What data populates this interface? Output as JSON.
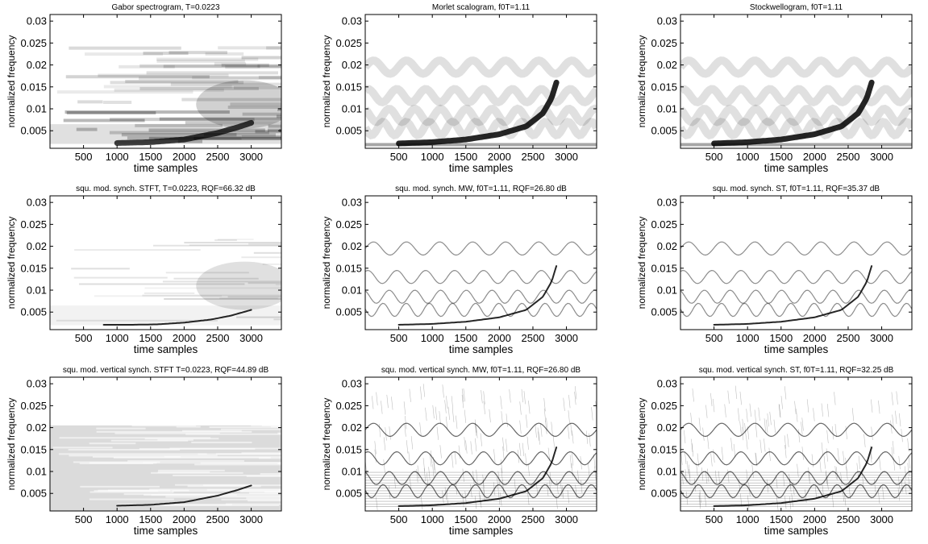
{
  "figure": {
    "colormap": "gray-inverted",
    "background": "#ffffff",
    "axis_color": "#000000"
  },
  "chart_data": [
    {
      "type": "heatmap",
      "title": "Gabor spectrogram, T=0.0223",
      "xlabel": "time samples",
      "ylabel": "normalized frequency",
      "xlim": [
        0,
        3450
      ],
      "ylim": [
        0.001,
        0.0315
      ],
      "xticks": [
        500,
        1000,
        1500,
        2000,
        2500,
        3000
      ],
      "xticklabels": [
        "500",
        "1000",
        "1500",
        "2000",
        "2500",
        "3000"
      ],
      "yticks": [
        0.005,
        0.01,
        0.015,
        0.02,
        0.025,
        0.03
      ],
      "yticklabels": [
        "0.005",
        "0.01",
        "0.015",
        "0.02",
        "0.025",
        "0.03"
      ],
      "style": "gabor",
      "ridge": {
        "t": [
          1000,
          1500,
          2000,
          2500,
          2800,
          3000
        ],
        "f": [
          0.0022,
          0.0024,
          0.003,
          0.0045,
          0.0058,
          0.0068
        ]
      }
    },
    {
      "type": "heatmap",
      "title": "Morlet scalogram, f0T=1.11",
      "xlabel": "time samples",
      "ylabel": "normalized frequency",
      "xlim": [
        0,
        3450
      ],
      "ylim": [
        0.001,
        0.0315
      ],
      "xticks": [
        500,
        1000,
        1500,
        2000,
        2500,
        3000
      ],
      "xticklabels": [
        "500",
        "1000",
        "1500",
        "2000",
        "2500",
        "3000"
      ],
      "yticks": [
        0.005,
        0.01,
        0.015,
        0.02,
        0.025,
        0.03
      ],
      "yticklabels": [
        "0.005",
        "0.01",
        "0.015",
        "0.02",
        "0.025",
        "0.03"
      ],
      "style": "wavelet",
      "ridge": {
        "t": [
          500,
          1000,
          1500,
          2000,
          2400,
          2650,
          2780,
          2850
        ],
        "f": [
          0.0021,
          0.0024,
          0.003,
          0.0042,
          0.006,
          0.009,
          0.0125,
          0.016
        ]
      }
    },
    {
      "type": "heatmap",
      "title": "Stockwellogram, f0T=1.11",
      "xlabel": "time samples",
      "ylabel": "normalized frequency",
      "xlim": [
        0,
        3450
      ],
      "ylim": [
        0.001,
        0.0315
      ],
      "xticks": [
        500,
        1000,
        1500,
        2000,
        2500,
        3000
      ],
      "xticklabels": [
        "500",
        "1000",
        "1500",
        "2000",
        "2500",
        "3000"
      ],
      "yticks": [
        0.005,
        0.01,
        0.015,
        0.02,
        0.025,
        0.03
      ],
      "yticklabels": [
        "0.005",
        "0.01",
        "0.015",
        "0.02",
        "0.025",
        "0.03"
      ],
      "style": "wavelet",
      "ridge": {
        "t": [
          500,
          1000,
          1500,
          2000,
          2400,
          2650,
          2780,
          2850
        ],
        "f": [
          0.0021,
          0.0024,
          0.003,
          0.0042,
          0.006,
          0.009,
          0.0125,
          0.016
        ]
      }
    },
    {
      "type": "heatmap",
      "title": "squ. mod. synch. STFT, T=0.0223, RQF=66.32 dB",
      "xlabel": "time samples",
      "ylabel": "normalized frequency",
      "xlim": [
        0,
        3450
      ],
      "ylim": [
        0.001,
        0.0315
      ],
      "xticks": [
        500,
        1000,
        1500,
        2000,
        2500,
        3000
      ],
      "xticklabels": [
        "500",
        "1000",
        "1500",
        "2000",
        "2500",
        "3000"
      ],
      "yticks": [
        0.005,
        0.01,
        0.015,
        0.02,
        0.025,
        0.03
      ],
      "yticklabels": [
        "0.005",
        "0.01",
        "0.015",
        "0.02",
        "0.025",
        "0.03"
      ],
      "style": "synch_stft",
      "ridge": {
        "t": [
          800,
          1200,
          1600,
          2000,
          2400,
          2700,
          3000
        ],
        "f": [
          0.0021,
          0.0021,
          0.0022,
          0.0026,
          0.0033,
          0.0042,
          0.0055
        ]
      }
    },
    {
      "type": "heatmap",
      "title": "squ. mod. synch. MW, f0T=1.11, RQF=26.80 dB",
      "xlabel": "time samples",
      "ylabel": "normalized frequency",
      "xlim": [
        0,
        3450
      ],
      "ylim": [
        0.001,
        0.0315
      ],
      "xticks": [
        500,
        1000,
        1500,
        2000,
        2500,
        3000
      ],
      "xticklabels": [
        "500",
        "1000",
        "1500",
        "2000",
        "2500",
        "3000"
      ],
      "yticks": [
        0.005,
        0.01,
        0.015,
        0.02,
        0.025,
        0.03
      ],
      "yticklabels": [
        "0.005",
        "0.01",
        "0.015",
        "0.02",
        "0.025",
        "0.03"
      ],
      "style": "synch_wave",
      "ridge": {
        "t": [
          500,
          1000,
          1500,
          2000,
          2400,
          2650,
          2780,
          2850
        ],
        "f": [
          0.0021,
          0.0023,
          0.0028,
          0.0038,
          0.0055,
          0.0085,
          0.012,
          0.0155
        ]
      }
    },
    {
      "type": "heatmap",
      "title": "squ. mod. synch. ST, f0T=1.11, RQF=35.37 dB",
      "xlabel": "time samples",
      "ylabel": "normalized frequency",
      "xlim": [
        0,
        3450
      ],
      "ylim": [
        0.001,
        0.0315
      ],
      "xticks": [
        500,
        1000,
        1500,
        2000,
        2500,
        3000
      ],
      "xticklabels": [
        "500",
        "1000",
        "1500",
        "2000",
        "2500",
        "3000"
      ],
      "yticks": [
        0.005,
        0.01,
        0.015,
        0.02,
        0.025,
        0.03
      ],
      "yticklabels": [
        "0.005",
        "0.01",
        "0.015",
        "0.02",
        "0.025",
        "0.03"
      ],
      "style": "synch_wave",
      "ridge": {
        "t": [
          500,
          1000,
          1500,
          2000,
          2400,
          2650,
          2780,
          2850
        ],
        "f": [
          0.0021,
          0.0023,
          0.0028,
          0.0038,
          0.0055,
          0.0085,
          0.012,
          0.0155
        ]
      }
    },
    {
      "type": "heatmap",
      "title": "squ. mod. vertical synch. STFT T=0.0223, RQF=44.89 dB",
      "xlabel": "time samples",
      "ylabel": "normalized frequency",
      "xlim": [
        0,
        3450
      ],
      "ylim": [
        0.001,
        0.0315
      ],
      "xticks": [
        500,
        1000,
        1500,
        2000,
        2500,
        3000
      ],
      "xticklabels": [
        "500",
        "1000",
        "1500",
        "2000",
        "2500",
        "3000"
      ],
      "yticks": [
        0.005,
        0.01,
        0.015,
        0.02,
        0.025,
        0.03
      ],
      "yticklabels": [
        "0.005",
        "0.01",
        "0.015",
        "0.02",
        "0.025",
        "0.03"
      ],
      "style": "vsynch_stft",
      "ridge": {
        "t": [
          1000,
          1500,
          2000,
          2500,
          2800,
          3000
        ],
        "f": [
          0.0022,
          0.0024,
          0.003,
          0.0045,
          0.0058,
          0.0068
        ]
      }
    },
    {
      "type": "heatmap",
      "title": "squ. mod. vertical synch. MW, f0T=1.11, RQF=26.80 dB",
      "xlabel": "time samples",
      "ylabel": "normalized frequency",
      "xlim": [
        0,
        3450
      ],
      "ylim": [
        0.001,
        0.0315
      ],
      "xticks": [
        500,
        1000,
        1500,
        2000,
        2500,
        3000
      ],
      "xticklabels": [
        "500",
        "1000",
        "1500",
        "2000",
        "2500",
        "3000"
      ],
      "yticks": [
        0.005,
        0.01,
        0.015,
        0.02,
        0.025,
        0.03
      ],
      "yticklabels": [
        "0.005",
        "0.01",
        "0.015",
        "0.02",
        "0.025",
        "0.03"
      ],
      "style": "vsynch_wave",
      "ridge": {
        "t": [
          500,
          1000,
          1500,
          2000,
          2400,
          2650,
          2780,
          2850
        ],
        "f": [
          0.0021,
          0.0023,
          0.0028,
          0.0038,
          0.0055,
          0.0085,
          0.012,
          0.0155
        ]
      }
    },
    {
      "type": "heatmap",
      "title": "squ. mod. vertical synch. ST, f0T=1.11, RQF=32.25 dB",
      "xlabel": "time samples",
      "ylabel": "normalized frequency",
      "xlim": [
        0,
        3450
      ],
      "ylim": [
        0.001,
        0.0315
      ],
      "xticks": [
        500,
        1000,
        1500,
        2000,
        2500,
        3000
      ],
      "xticklabels": [
        "500",
        "1000",
        "1500",
        "2000",
        "2500",
        "3000"
      ],
      "yticks": [
        0.005,
        0.01,
        0.015,
        0.02,
        0.025,
        0.03
      ],
      "yticklabels": [
        "0.005",
        "0.01",
        "0.015",
        "0.02",
        "0.025",
        "0.03"
      ],
      "style": "vsynch_wave",
      "ridge": {
        "t": [
          500,
          1000,
          1500,
          2000,
          2400,
          2650,
          2780,
          2850
        ],
        "f": [
          0.0021,
          0.0023,
          0.0028,
          0.0038,
          0.0055,
          0.0085,
          0.012,
          0.0155
        ]
      }
    }
  ]
}
